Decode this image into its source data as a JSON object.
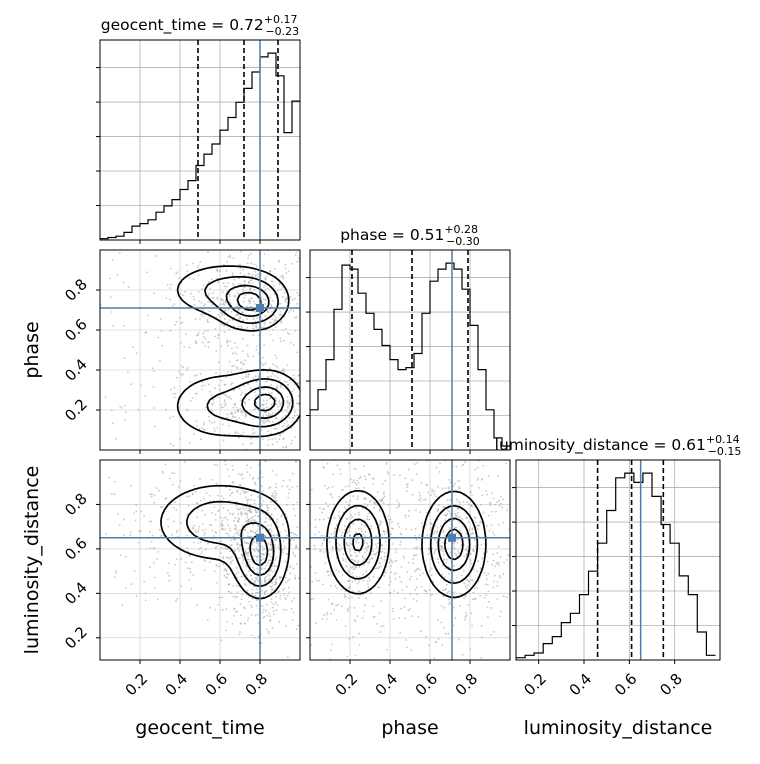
{
  "chart_data": {
    "type": "corner",
    "parameters": [
      "geocent_time",
      "phase",
      "luminosity_distance"
    ],
    "injection_color": "#4c7fb0",
    "titles": [
      {
        "param": "geocent_time",
        "prefix": "geocent_time = ",
        "median": "0.72",
        "plus": "+0.17",
        "minus": "−0.23"
      },
      {
        "param": "phase",
        "prefix": "phase = ",
        "median": "0.51",
        "plus": "+0.28",
        "minus": "−0.30"
      },
      {
        "param": "luminosity_distance",
        "prefix": "luminosity_distance = ",
        "median": "0.61",
        "plus": "+0.14",
        "minus": "−0.15"
      }
    ],
    "axes": {
      "geocent_time": {
        "range": [
          0.0,
          1.0
        ],
        "ticks": [
          "0.2",
          "0.4",
          "0.6",
          "0.8"
        ],
        "injection": 0.8,
        "quantiles": [
          0.49,
          0.72,
          0.89
        ]
      },
      "phase": {
        "range": [
          0.0,
          1.0
        ],
        "ticks": [
          "0.2",
          "0.4",
          "0.6",
          "0.8"
        ],
        "injection": 0.71,
        "quantiles": [
          0.21,
          0.51,
          0.79
        ]
      },
      "luminosity_distance": {
        "range": [
          0.1,
          1.0
        ],
        "ticks": [
          "0.2",
          "0.4",
          "0.6",
          "0.8"
        ],
        "injection": 0.65,
        "quantiles": [
          0.46,
          0.61,
          0.75
        ]
      }
    },
    "histograms": {
      "geocent_time": {
        "bin_edges": [
          0.0,
          0.04,
          0.08,
          0.12,
          0.16,
          0.2,
          0.24,
          0.28,
          0.32,
          0.36,
          0.4,
          0.44,
          0.48,
          0.52,
          0.56,
          0.6,
          0.64,
          0.68,
          0.72,
          0.76,
          0.8,
          0.84,
          0.88,
          0.92,
          0.96,
          1.0
        ],
        "counts": [
          1,
          2,
          3,
          6,
          11,
          13,
          16,
          22,
          27,
          32,
          40,
          47,
          59,
          68,
          76,
          87,
          97,
          109,
          120,
          133,
          145,
          148,
          130,
          85,
          110
        ]
      },
      "phase": {
        "bin_edges": [
          0.0,
          0.04,
          0.08,
          0.12,
          0.16,
          0.2,
          0.24,
          0.28,
          0.32,
          0.36,
          0.4,
          0.44,
          0.48,
          0.52,
          0.56,
          0.6,
          0.64,
          0.68,
          0.72,
          0.76,
          0.8,
          0.84,
          0.88,
          0.92,
          0.96,
          1.0
        ],
        "counts": [
          20,
          30,
          45,
          70,
          92,
          90,
          78,
          68,
          60,
          52,
          45,
          40,
          41,
          48,
          68,
          84,
          90,
          93,
          90,
          80,
          62,
          40,
          20,
          6,
          2
        ]
      },
      "luminosity_distance": {
        "bin_edges": [
          0.1,
          0.14,
          0.18,
          0.22,
          0.26,
          0.3,
          0.34,
          0.38,
          0.42,
          0.46,
          0.5,
          0.54,
          0.58,
          0.62,
          0.66,
          0.7,
          0.74,
          0.78,
          0.82,
          0.86,
          0.9,
          0.94,
          0.98
        ],
        "counts": [
          1,
          2,
          3,
          7,
          10,
          16,
          20,
          28,
          38,
          50,
          64,
          78,
          80,
          76,
          80,
          70,
          58,
          50,
          36,
          28,
          12,
          2
        ]
      }
    },
    "panels_2d": [
      {
        "x": "geocent_time",
        "y": "phase",
        "modes": [
          {
            "cx": 0.76,
            "cy": 0.73,
            "sx": 0.09,
            "sy": 0.07,
            "w": 1.0
          },
          {
            "cx": 0.62,
            "cy": 0.8,
            "sx": 0.16,
            "sy": 0.08,
            "w": 0.5
          },
          {
            "cx": 0.84,
            "cy": 0.24,
            "sx": 0.09,
            "sy": 0.08,
            "w": 1.0
          },
          {
            "cx": 0.62,
            "cy": 0.22,
            "sx": 0.16,
            "sy": 0.1,
            "w": 0.5
          }
        ]
      },
      {
        "x": "geocent_time",
        "y": "luminosity_distance",
        "modes": [
          {
            "cx": 0.8,
            "cy": 0.57,
            "sx": 0.07,
            "sy": 0.1,
            "w": 1.0
          },
          {
            "cx": 0.6,
            "cy": 0.72,
            "sx": 0.18,
            "sy": 0.1,
            "w": 0.6
          }
        ]
      },
      {
        "x": "phase",
        "y": "luminosity_distance",
        "modes": [
          {
            "cx": 0.24,
            "cy": 0.63,
            "sx": 0.08,
            "sy": 0.12,
            "w": 0.9
          },
          {
            "cx": 0.72,
            "cy": 0.62,
            "sx": 0.08,
            "sy": 0.12,
            "w": 1.0
          }
        ]
      }
    ],
    "grid": true
  }
}
